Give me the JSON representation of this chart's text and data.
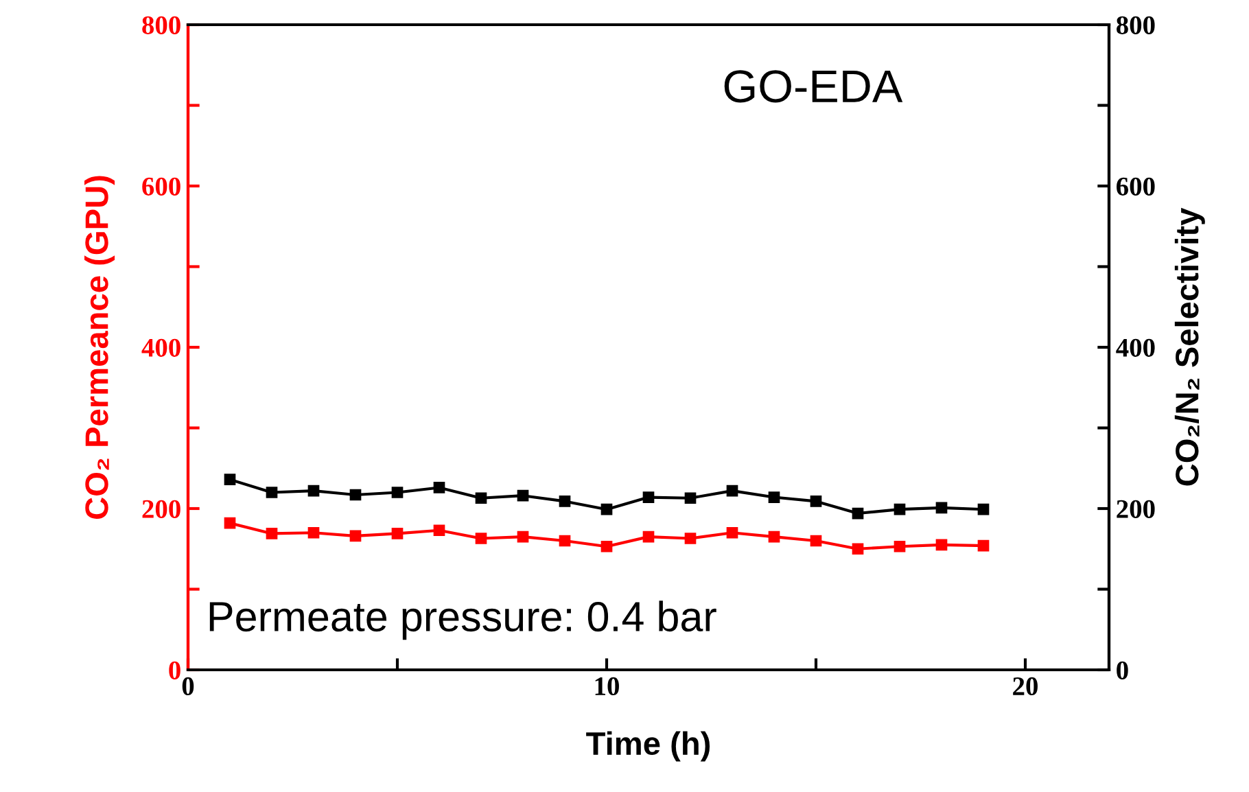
{
  "chart_data": {
    "type": "line",
    "xlabel": "Time (h)",
    "ylabel": "CO₂ Permeance (GPU)",
    "y2label": "CO₂/N₂ Selectivity",
    "annotations": [
      "GO-EDA",
      "Permeate pressure: 0.4 bar"
    ],
    "x": [
      1,
      2,
      3,
      4,
      5,
      6,
      7,
      8,
      9,
      10,
      11,
      12,
      13,
      14,
      15,
      16,
      17,
      18,
      19
    ],
    "series": [
      {
        "color": "#ff0000",
        "values": [
          182,
          169,
          170,
          166,
          169,
          173,
          163,
          165,
          160,
          153,
          165,
          163,
          170,
          165,
          160,
          150,
          153,
          155,
          154
        ]
      },
      {
        "color": "#000000",
        "axis": "y2",
        "values": [
          236,
          220,
          222,
          217,
          220,
          226,
          213,
          216,
          209,
          199,
          214,
          213,
          222,
          214,
          209,
          194,
          199,
          201,
          199
        ]
      }
    ],
    "xlim": [
      0,
      22
    ],
    "xticks": [
      0,
      {
        "value": 5,
        "label": null
      },
      10,
      {
        "value": 15,
        "label": null
      },
      20
    ],
    "ylim": [
      0,
      800
    ],
    "yticks": [
      0,
      {
        "value": 100,
        "label": null
      },
      200,
      {
        "value": 300,
        "label": null
      },
      400,
      {
        "value": 500,
        "label": null
      },
      600,
      {
        "value": 700,
        "label": null
      },
      800
    ],
    "y2lim": [
      0,
      800
    ],
    "y2ticks": [
      0,
      {
        "value": 100,
        "label": null
      },
      200,
      {
        "value": 300,
        "label": null
      },
      400,
      {
        "value": 500,
        "label": null
      },
      600,
      {
        "value": 700,
        "label": null
      },
      800
    ],
    "marker": "square",
    "line_style": "solid",
    "grid": false,
    "legend": false
  }
}
